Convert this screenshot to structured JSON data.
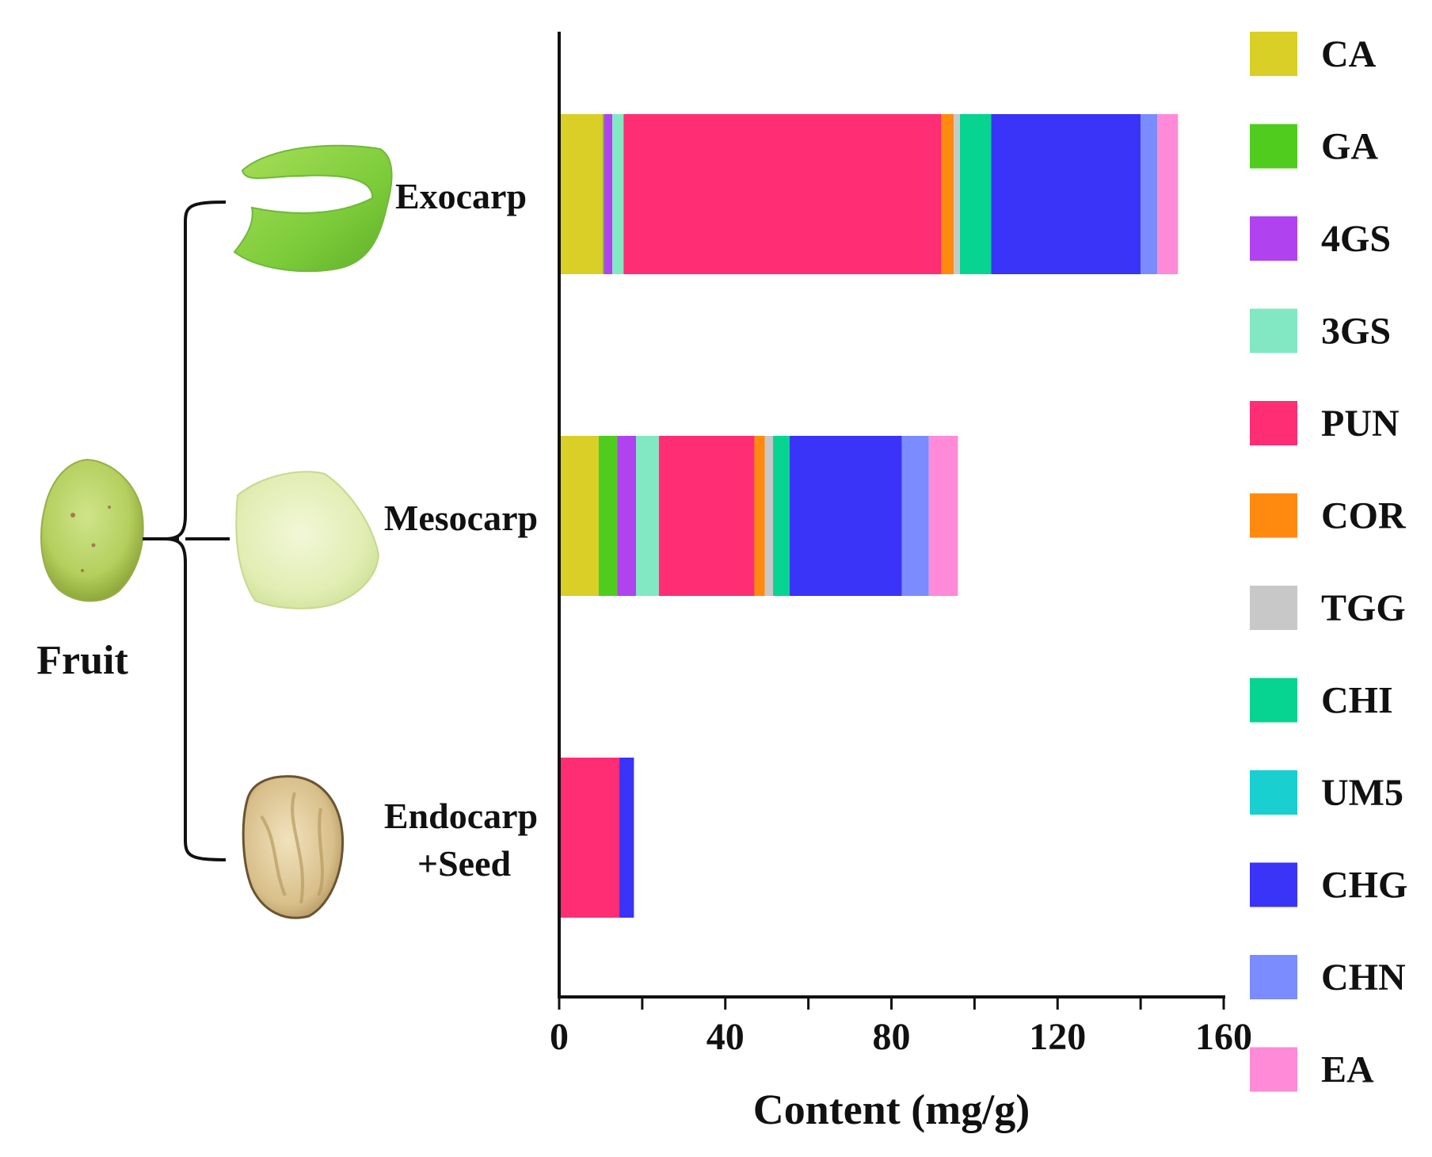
{
  "fruit_label": "Fruit",
  "chart_data": {
    "type": "bar",
    "orientation": "horizontal",
    "stacked": true,
    "title": "",
    "xlabel": "Content (mg/g)",
    "ylabel": "",
    "xlim": [
      0,
      160
    ],
    "xticks": [
      0,
      40,
      80,
      120,
      160
    ],
    "categories": [
      {
        "name": "Exocarp",
        "lines": [
          "Exocarp"
        ]
      },
      {
        "name": "Mesocarp",
        "lines": [
          "Mesocarp"
        ]
      },
      {
        "name": "Endocarp +Seed",
        "lines": [
          "Endocarp",
          "+Seed"
        ]
      }
    ],
    "series": [
      {
        "name": "CA",
        "color": "#D9CF26",
        "values": [
          10.5,
          9.5,
          0
        ]
      },
      {
        "name": "GA",
        "color": "#4FCC1E",
        "values": [
          0.3,
          4.5,
          0
        ]
      },
      {
        "name": "4GS",
        "color": "#B042F0",
        "values": [
          2.0,
          4.5,
          0
        ]
      },
      {
        "name": "3GS",
        "color": "#82E8C4",
        "values": [
          2.7,
          5.5,
          0
        ]
      },
      {
        "name": "PUN",
        "color": "#FF2D74",
        "values": [
          76.5,
          23.0,
          14.5
        ]
      },
      {
        "name": "COR",
        "color": "#FF8A0F",
        "values": [
          3.0,
          2.5,
          0
        ]
      },
      {
        "name": "TGG",
        "color": "#C8C8C8",
        "values": [
          1.5,
          2.0,
          0
        ]
      },
      {
        "name": "CHI",
        "color": "#06D490",
        "values": [
          7.5,
          4.0,
          0
        ]
      },
      {
        "name": "UM5",
        "color": "#19CFCF",
        "values": [
          0,
          0,
          0
        ]
      },
      {
        "name": "CHG",
        "color": "#3A33F8",
        "values": [
          36.0,
          27.0,
          3.5
        ]
      },
      {
        "name": "CHN",
        "color": "#7A8CFF",
        "values": [
          4.0,
          6.5,
          0
        ]
      },
      {
        "name": "EA",
        "color": "#FF8AD8",
        "values": [
          5.0,
          7.0,
          0
        ]
      }
    ],
    "legend_position": "right"
  }
}
